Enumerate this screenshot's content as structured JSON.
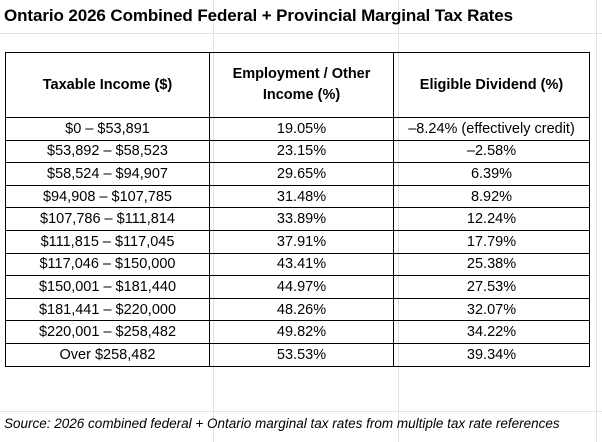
{
  "title": "Ontario 2026 Combined Federal + Provincial Marginal Tax Rates",
  "table": {
    "headers": {
      "income": "Taxable Income ($)",
      "employment": "Employment / Other Income (%)",
      "dividend": "Eligible Dividend (%)"
    },
    "rows": [
      {
        "income": "$0 – $53,891",
        "employment": "19.05%",
        "dividend": "–8.24% (effectively credit)"
      },
      {
        "income": "$53,892 – $58,523",
        "employment": "23.15%",
        "dividend": "–2.58%"
      },
      {
        "income": "$58,524 – $94,907",
        "employment": "29.65%",
        "dividend": "6.39%"
      },
      {
        "income": "$94,908 – $107,785",
        "employment": "31.48%",
        "dividend": "8.92%"
      },
      {
        "income": "$107,786 – $111,814",
        "employment": "33.89%",
        "dividend": "12.24%"
      },
      {
        "income": "$111,815 – $117,045",
        "employment": "37.91%",
        "dividend": "17.79%"
      },
      {
        "income": "$117,046 – $150,000",
        "employment": "43.41%",
        "dividend": "25.38%"
      },
      {
        "income": "$150,001 – $181,440",
        "employment": "44.97%",
        "dividend": "27.53%"
      },
      {
        "income": "$181,441 – $220,000",
        "employment": "48.26%",
        "dividend": "32.07%"
      },
      {
        "income": "$220,001 – $258,482",
        "employment": "49.82%",
        "dividend": "34.22%"
      },
      {
        "income": "Over $258,482",
        "employment": "53.53%",
        "dividend": "39.34%"
      }
    ]
  },
  "source": "Source: 2026 combined federal + Ontario marginal tax rates from multiple tax rate references"
}
